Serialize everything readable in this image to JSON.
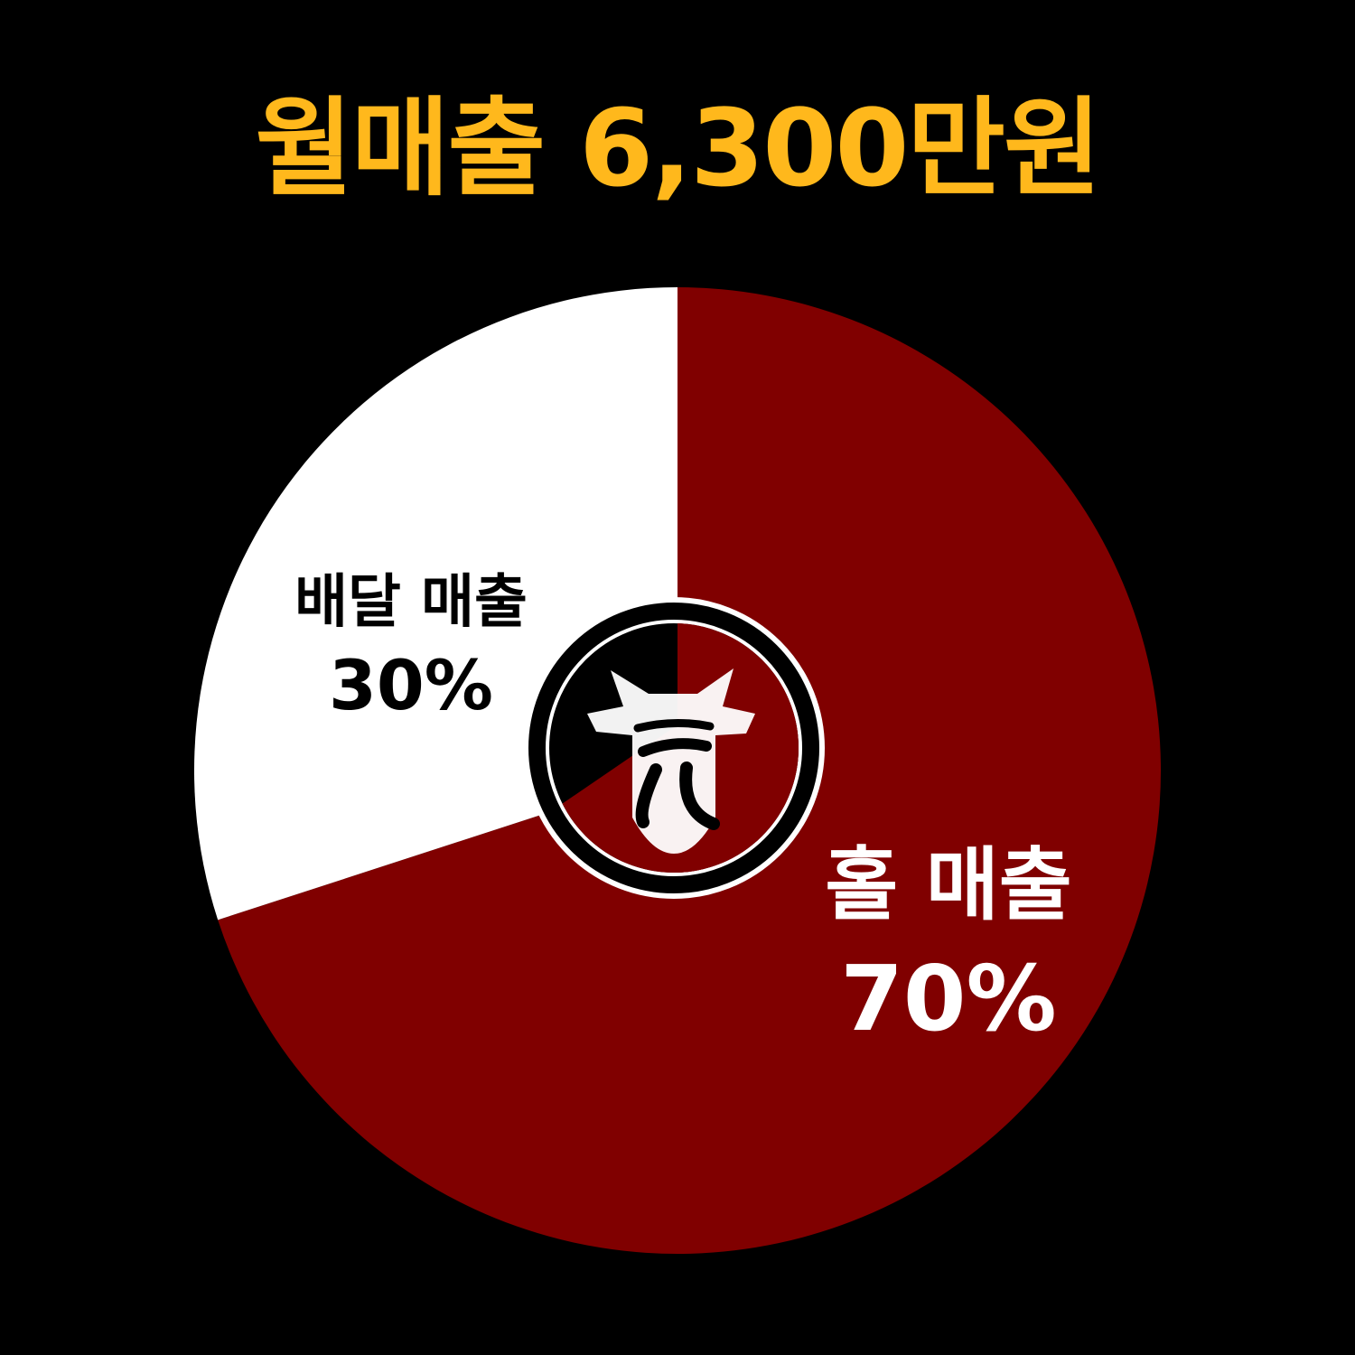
{
  "title": "월매출 6,300만원",
  "colors": {
    "background": "#000000",
    "title": "#FFB81C",
    "hall": "#800000",
    "delivery": "#FFFFFF",
    "label_on_dark": "#FFFFFF",
    "label_on_light": "#000000"
  },
  "logo": {
    "icon": "bull-head-logo-icon"
  },
  "chart_data": {
    "type": "pie",
    "title": "월매출 6,300만원",
    "start": "12 o'clock",
    "direction": "clockwise",
    "slices": [
      {
        "name": "홀 매출",
        "value": 70,
        "value_label": "70%",
        "color": "#800000"
      },
      {
        "name": "배달 매출",
        "value": 30,
        "value_label": "30%",
        "color": "#FFFFFF"
      }
    ]
  }
}
